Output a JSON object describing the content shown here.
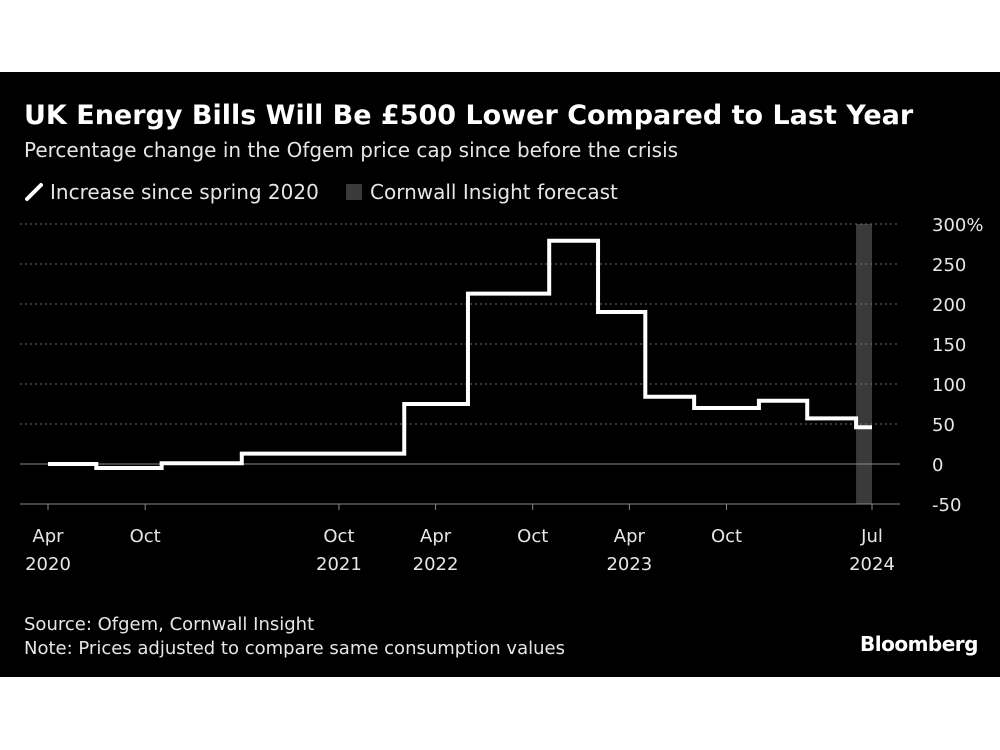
{
  "header": {
    "title": "UK Energy Bills Will Be £500 Lower Compared to Last Year",
    "subtitle": "Percentage change in the Ofgem price cap since before the crisis"
  },
  "legend": {
    "series_label": "Increase since spring 2020",
    "forecast_label": "Cornwall Insight forecast"
  },
  "footer": {
    "source": "Source: Ofgem, Cornwall Insight",
    "note": "Note: Prices adjusted to compare same consumption values",
    "brand": "Bloomberg"
  },
  "colors": {
    "background": "#000000",
    "line": "#ffffff",
    "forecast_band": "#3a3a3a",
    "grid": "#6e6e6e",
    "text": "#e6e6e6"
  },
  "chart_data": {
    "type": "line",
    "step": true,
    "title": "UK Energy Bills Will Be £500 Lower Compared to Last Year",
    "subtitle": "Percentage change in the Ofgem price cap since before the crisis",
    "xlabel": "",
    "ylabel": "",
    "ylim": [
      -50,
      300
    ],
    "xlim": [
      "2020-04-01",
      "2024-07-01"
    ],
    "y_ticks": [
      -50,
      0,
      50,
      100,
      150,
      200,
      250,
      300
    ],
    "y_tick_labels": [
      "-50",
      "0",
      "50",
      "100",
      "150",
      "200",
      "250",
      "300%"
    ],
    "x_ticks": [
      {
        "date": "2020-04-01",
        "line1": "Apr",
        "line2": "2020"
      },
      {
        "date": "2020-10-01",
        "line1": "Oct",
        "line2": ""
      },
      {
        "date": "2021-10-01",
        "line1": "Oct",
        "line2": "2021"
      },
      {
        "date": "2022-04-01",
        "line1": "Apr",
        "line2": "2022"
      },
      {
        "date": "2022-10-01",
        "line1": "Oct",
        "line2": ""
      },
      {
        "date": "2023-04-01",
        "line1": "Apr",
        "line2": "2023"
      },
      {
        "date": "2023-10-01",
        "line1": "Oct",
        "line2": ""
      },
      {
        "date": "2024-07-01",
        "line1": "Jul",
        "line2": "2024"
      }
    ],
    "series": [
      {
        "name": "Increase since spring 2020",
        "points": [
          {
            "date": "2020-04-01",
            "value": 0
          },
          {
            "date": "2020-07-01",
            "value": -5
          },
          {
            "date": "2020-11-01",
            "value": 1
          },
          {
            "date": "2021-04-01",
            "value": 13
          },
          {
            "date": "2022-02-01",
            "value": 75
          },
          {
            "date": "2022-06-01",
            "value": 213
          },
          {
            "date": "2022-11-01",
            "value": 279
          },
          {
            "date": "2023-02-01",
            "value": 190
          },
          {
            "date": "2023-05-01",
            "value": 84
          },
          {
            "date": "2023-08-01",
            "value": 70
          },
          {
            "date": "2023-12-01",
            "value": 79
          },
          {
            "date": "2024-03-01",
            "value": 57
          },
          {
            "date": "2024-06-01",
            "value": 46
          }
        ],
        "end": "2024-07-01"
      }
    ],
    "forecast_band": {
      "label": "Cornwall Insight forecast",
      "start": "2024-06-01",
      "end": "2024-07-01"
    },
    "grid": true,
    "legend_position": "top-left"
  }
}
